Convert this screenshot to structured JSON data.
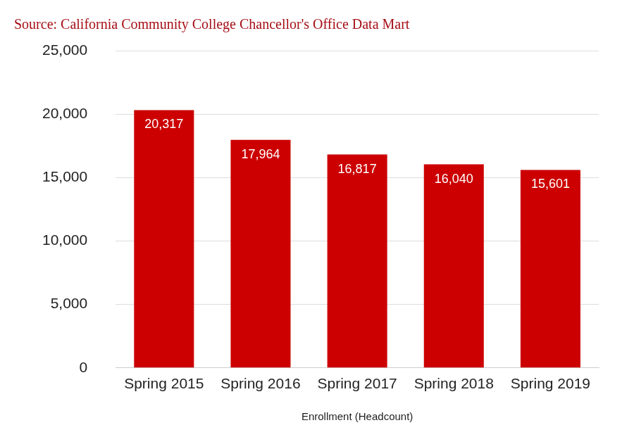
{
  "chart_data": {
    "type": "bar",
    "title": "Source: California Community College Chancellor's Office Data Mart",
    "x_label": "Enrollment (Headcount)",
    "categories": [
      "Spring 2015",
      "Spring 2016",
      "Spring 2017",
      "Spring 2018",
      "Spring 2019"
    ],
    "values": [
      20317,
      17964,
      16817,
      16040,
      15601
    ],
    "value_labels": [
      "20,317",
      "17,964",
      "16,817",
      "16,040",
      "15,601"
    ],
    "data_labels": true,
    "color": "#cc0000",
    "ylim": [
      0,
      25000
    ],
    "yticks": [
      0,
      {
        "value": 5000,
        "label": "5,000"
      },
      {
        "value": 10000,
        "label": "10,000"
      },
      {
        "value": 15000,
        "label": "15,000"
      },
      {
        "value": 20000,
        "label": "20,000"
      },
      {
        "value": 25000,
        "label": "25,000"
      }
    ],
    "grid": true
  }
}
